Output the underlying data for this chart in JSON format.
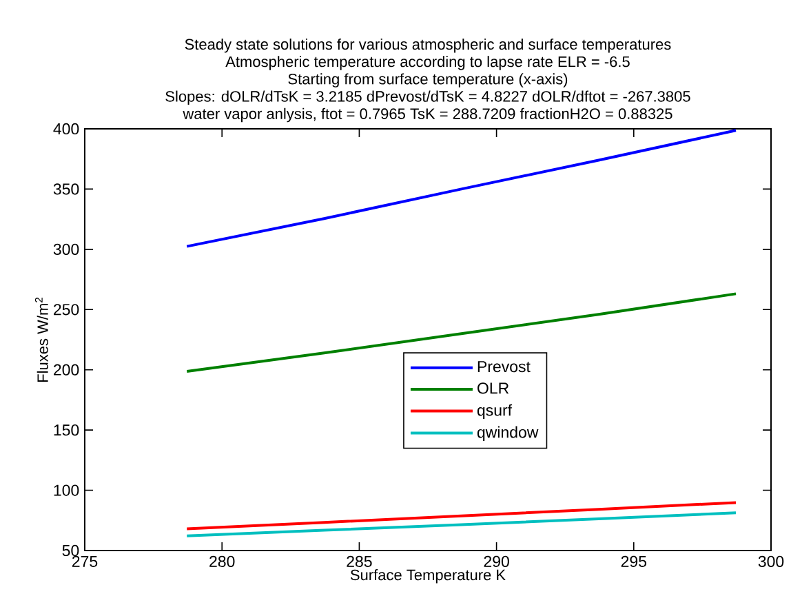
{
  "chart_data": {
    "type": "line",
    "title": "Steady state solutions for various atmospheric and surface temperatures",
    "annotations": [
      "Atmospheric temperature according to lapse rate ELR = -6.5",
      "Starting from surface temperature (x-axis)",
      "Slopes: dOLR/dTsK = 3.2185 dPrevost/dTsK = 4.8227 dOLR/dftot = -267.3805",
      "water vapor anlysis, ftot = 0.7965 TsK = 288.7209 fractionH2O = 0.88325"
    ],
    "xlabel": "Surface Temperature K",
    "ylabel": "Fluxes W/m$^{2}$",
    "x": [
      278.72,
      283.72,
      288.72,
      293.72,
      298.72
    ],
    "series": [
      {
        "name": "Prevost",
        "color": "#0000ff",
        "values": [
          302.4,
          325.5,
          350,
          374,
          398.7
        ]
      },
      {
        "name": "OLR",
        "color": "#008000",
        "values": [
          198.7,
          214,
          230,
          246,
          263.1
        ]
      },
      {
        "name": "qsurf",
        "color": "#ff0000",
        "values": [
          68,
          73.3,
          78.7,
          84.2,
          89.8
        ]
      },
      {
        "name": "qwindow",
        "color": "#00bfbf",
        "values": [
          62.1,
          66.8,
          71.5,
          76.3,
          81.3
        ]
      }
    ],
    "xlim": [
      275,
      300
    ],
    "ylim": [
      50,
      400
    ],
    "xticks": [
      275,
      280,
      285,
      290,
      295,
      300
    ],
    "yticks": [
      50,
      100,
      150,
      200,
      250,
      300,
      350,
      400
    ],
    "grid": false,
    "legend": "center",
    "marker": "none",
    "line_style": "solid"
  }
}
